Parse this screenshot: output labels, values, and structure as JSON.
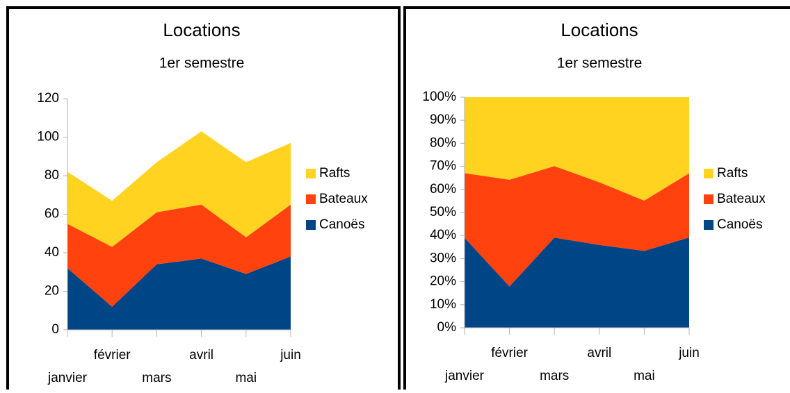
{
  "chart_data": [
    {
      "type": "stacked_area",
      "title": "Locations",
      "subtitle": "1er semestre",
      "categories": [
        "janvier",
        "février",
        "mars",
        "avril",
        "mai",
        "juin"
      ],
      "series": [
        {
          "name": "Canoës",
          "color": "#004586",
          "values": [
            32,
            12,
            34,
            37,
            29,
            38
          ]
        },
        {
          "name": "Bateaux",
          "color": "#ff420e",
          "values": [
            23,
            31,
            27,
            28,
            19,
            27
          ]
        },
        {
          "name": "Rafts",
          "color": "#ffd320",
          "values": [
            27,
            24,
            26,
            38,
            39,
            32
          ]
        }
      ],
      "ylim": [
        0,
        120
      ],
      "yticks": [
        0,
        20,
        40,
        60,
        80,
        100,
        120
      ],
      "grid": false,
      "legend": "right"
    },
    {
      "type": "percent_stacked_area",
      "title": "Locations",
      "subtitle": "1er semestre",
      "categories": [
        "janvier",
        "février",
        "mars",
        "avril",
        "mai",
        "juin"
      ],
      "series": [
        {
          "name": "Canoës",
          "color": "#004586",
          "values": [
            32,
            12,
            34,
            37,
            29,
            38
          ]
        },
        {
          "name": "Bateaux",
          "color": "#ff420e",
          "values": [
            23,
            31,
            27,
            28,
            19,
            27
          ]
        },
        {
          "name": "Rafts",
          "color": "#ffd320",
          "values": [
            27,
            24,
            26,
            38,
            39,
            32
          ]
        }
      ],
      "ylim": [
        0,
        100
      ],
      "yticks": [
        {
          "value": 0,
          "label": "0%"
        },
        {
          "value": 10,
          "label": "10%"
        },
        {
          "value": 20,
          "label": "20%"
        },
        {
          "value": 30,
          "label": "30%"
        },
        {
          "value": 40,
          "label": "40%"
        },
        {
          "value": 50,
          "label": "50%"
        },
        {
          "value": 60,
          "label": "60%"
        },
        {
          "value": 70,
          "label": "70%"
        },
        {
          "value": 80,
          "label": "80%"
        },
        {
          "value": 90,
          "label": "90%"
        },
        {
          "value": 100,
          "label": "100%"
        }
      ],
      "grid": false,
      "legend": "right"
    }
  ]
}
